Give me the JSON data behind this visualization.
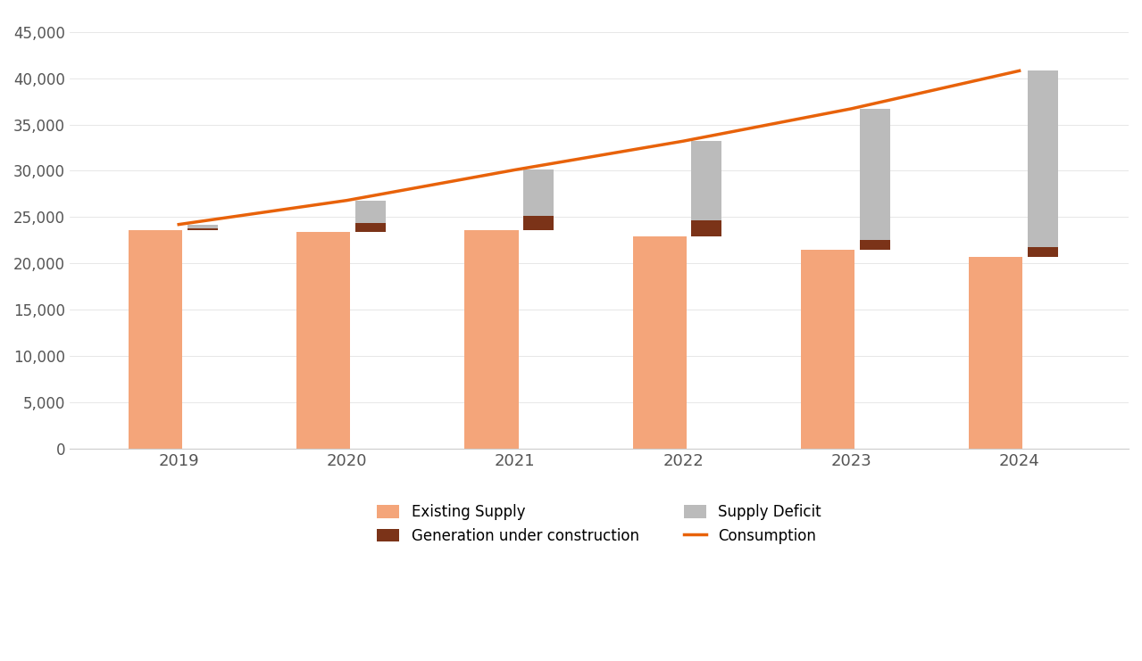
{
  "years": [
    2019,
    2020,
    2021,
    2022,
    2023,
    2024
  ],
  "existing_supply": [
    23600,
    23400,
    23600,
    22900,
    21500,
    20700
  ],
  "generation_under_construction": [
    200,
    1000,
    1500,
    1700,
    1050,
    1050
  ],
  "consumption": [
    24200,
    26800,
    30100,
    33200,
    36700,
    40800
  ],
  "existing_supply_color": "#F4A57A",
  "generation_color": "#7B3318",
  "deficit_color": "#BBBBBB",
  "consumption_color": "#E8620A",
  "background_color": "#FFFFFF",
  "ylim": [
    0,
    47000
  ],
  "yticks": [
    0,
    5000,
    10000,
    15000,
    20000,
    25000,
    30000,
    35000,
    40000,
    45000
  ],
  "figsize": [
    12.79,
    7.41
  ],
  "legend_items": [
    "Existing Supply",
    "Generation under construction",
    "Supply Deficit",
    "Consumption"
  ]
}
